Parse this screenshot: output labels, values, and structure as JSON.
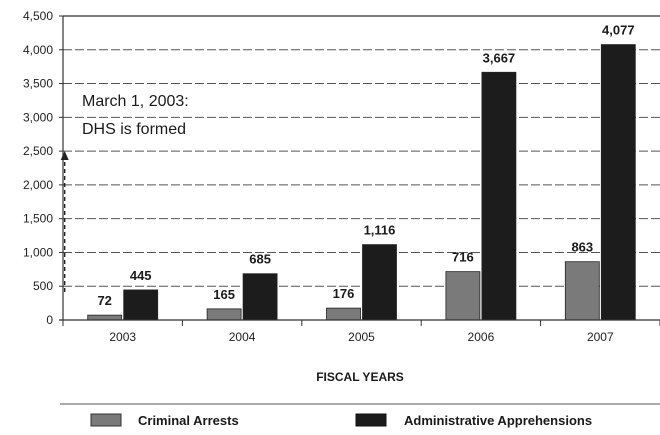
{
  "chart_data": {
    "type": "bar",
    "categories": [
      "2003",
      "2004",
      "2005",
      "2006",
      "2007"
    ],
    "series": [
      {
        "name": "Criminal Arrests",
        "values": [
          72,
          165,
          176,
          716,
          863
        ],
        "labels": [
          "72",
          "165",
          "176",
          "716",
          "863"
        ],
        "color": "#7a7a7a"
      },
      {
        "name": "Administrative Apprehensions",
        "values": [
          445,
          685,
          1116,
          3667,
          4077
        ],
        "labels": [
          "445",
          "685",
          "1,116",
          "3,667",
          "4,077"
        ],
        "color": "#1c1c1c"
      }
    ],
    "xlabel": "FISCAL YEARS",
    "ylabel": "",
    "ylim": [
      0,
      4500
    ],
    "yticks": [
      0,
      500,
      1000,
      1500,
      2000,
      2500,
      3000,
      3500,
      4000,
      4500
    ],
    "yticklabels": [
      "0",
      "500",
      "1,000",
      "1,500",
      "2,000",
      "2,500",
      "3,000",
      "3,500",
      "4,000",
      "4,500"
    ],
    "grid": true,
    "legend_position": "bottom",
    "annotation": {
      "line1": "March 1, 2003:",
      "line2": "DHS is formed",
      "category": "2003"
    }
  }
}
